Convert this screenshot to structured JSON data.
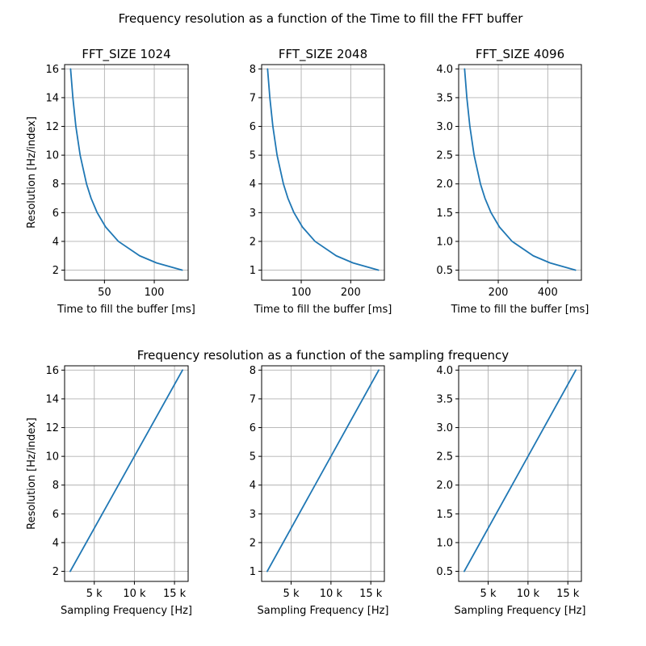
{
  "figure": {
    "top_suptitle": "Frequency resolution as a function of the Time to fill the FFT buffer",
    "bottom_suptitle": "Frequency resolution as a function of the sampling frequency",
    "line_color": "#1f77b4",
    "grid_color": "#b0b0b0"
  },
  "chart_data": [
    {
      "type": "line",
      "title": "FFT_SIZE 1024",
      "xlabel": "Time to fill the buffer [ms]",
      "ylabel": "Resolution [Hz/index]",
      "xlim": [
        10,
        134
      ],
      "ylim": [
        1.3,
        16.3
      ],
      "xticks": [
        50,
        100
      ],
      "xtick_labels": [
        "50",
        "100"
      ],
      "yticks": [
        2,
        4,
        6,
        8,
        10,
        12,
        14,
        16
      ],
      "ytick_labels": [
        "2",
        "4",
        "6",
        "8",
        "10",
        "12",
        "14",
        "16"
      ],
      "grid": true,
      "series": [
        {
          "x": [
            16.0,
            18.3,
            21.3,
            25.6,
            32.0,
            36.6,
            42.7,
            51.2,
            64.0,
            85.3,
            102.4,
            128.0
          ],
          "y": [
            16.0,
            14.0,
            12.0,
            10.0,
            8.0,
            7.0,
            6.0,
            5.0,
            4.0,
            3.0,
            2.5,
            2.0
          ]
        }
      ]
    },
    {
      "type": "line",
      "title": "FFT_SIZE 2048",
      "xlabel": "Time to fill the buffer [ms]",
      "ylabel": "",
      "xlim": [
        20,
        268
      ],
      "ylim": [
        0.65,
        8.15
      ],
      "xticks": [
        100,
        200
      ],
      "xtick_labels": [
        "100",
        "200"
      ],
      "yticks": [
        1,
        2,
        3,
        4,
        5,
        6,
        7,
        8
      ],
      "ytick_labels": [
        "1",
        "2",
        "3",
        "4",
        "5",
        "6",
        "7",
        "8"
      ],
      "grid": true,
      "series": [
        {
          "x": [
            32.0,
            36.6,
            42.7,
            51.2,
            64.0,
            73.1,
            85.3,
            102.4,
            128.0,
            170.7,
            204.8,
            256.0
          ],
          "y": [
            8.0,
            7.0,
            6.0,
            5.0,
            4.0,
            3.5,
            3.0,
            2.5,
            2.0,
            1.5,
            1.25,
            1.0
          ]
        }
      ]
    },
    {
      "type": "line",
      "title": "FFT_SIZE 4096",
      "xlabel": "Time to fill the buffer [ms]",
      "ylabel": "",
      "xlim": [
        40,
        536
      ],
      "ylim": [
        0.325,
        4.075
      ],
      "xticks": [
        200,
        400
      ],
      "xtick_labels": [
        "200",
        "400"
      ],
      "yticks": [
        0.5,
        1.0,
        1.5,
        2.0,
        2.5,
        3.0,
        3.5,
        4.0
      ],
      "ytick_labels": [
        "0.5",
        "1.0",
        "1.5",
        "2.0",
        "2.5",
        "3.0",
        "3.5",
        "4.0"
      ],
      "grid": true,
      "series": [
        {
          "x": [
            64.0,
            73.1,
            85.3,
            102.4,
            128.0,
            146.3,
            170.7,
            204.8,
            256.0,
            341.3,
            409.6,
            512.0
          ],
          "y": [
            4.0,
            3.5,
            3.0,
            2.5,
            2.0,
            1.75,
            1.5,
            1.25,
            1.0,
            0.75,
            0.625,
            0.5
          ]
        }
      ]
    },
    {
      "type": "line",
      "title": "",
      "xlabel": "Sampling Frequency [Hz]",
      "ylabel": "Resolution [Hz/index]",
      "xlim": [
        1300,
        16700
      ],
      "ylim": [
        1.3,
        16.3
      ],
      "xticks": [
        5000,
        10000,
        15000
      ],
      "xtick_labels": [
        "5 k",
        "10 k",
        "15 k"
      ],
      "yticks": [
        2,
        4,
        6,
        8,
        10,
        12,
        14,
        16
      ],
      "ytick_labels": [
        "2",
        "4",
        "6",
        "8",
        "10",
        "12",
        "14",
        "16"
      ],
      "grid": true,
      "series": [
        {
          "x": [
            2000,
            16000
          ],
          "y": [
            2.0,
            16.0
          ]
        }
      ]
    },
    {
      "type": "line",
      "title": "",
      "xlabel": "Sampling Frequency [Hz]",
      "ylabel": "",
      "xlim": [
        1300,
        16700
      ],
      "ylim": [
        0.65,
        8.15
      ],
      "xticks": [
        5000,
        10000,
        15000
      ],
      "xtick_labels": [
        "5 k",
        "10 k",
        "15 k"
      ],
      "yticks": [
        1,
        2,
        3,
        4,
        5,
        6,
        7,
        8
      ],
      "ytick_labels": [
        "1",
        "2",
        "3",
        "4",
        "5",
        "6",
        "7",
        "8"
      ],
      "grid": true,
      "series": [
        {
          "x": [
            2000,
            16000
          ],
          "y": [
            1.0,
            8.0
          ]
        }
      ]
    },
    {
      "type": "line",
      "title": "",
      "xlabel": "Sampling Frequency [Hz]",
      "ylabel": "",
      "xlim": [
        1300,
        16700
      ],
      "ylim": [
        0.325,
        4.075
      ],
      "xticks": [
        5000,
        10000,
        15000
      ],
      "xtick_labels": [
        "5 k",
        "10 k",
        "15 k"
      ],
      "yticks": [
        0.5,
        1.0,
        1.5,
        2.0,
        2.5,
        3.0,
        3.5,
        4.0
      ],
      "ytick_labels": [
        "0.5",
        "1.0",
        "1.5",
        "2.0",
        "2.5",
        "3.0",
        "3.5",
        "4.0"
      ],
      "grid": true,
      "series": [
        {
          "x": [
            2000,
            16000
          ],
          "y": [
            0.5,
            4.0
          ]
        }
      ]
    }
  ]
}
